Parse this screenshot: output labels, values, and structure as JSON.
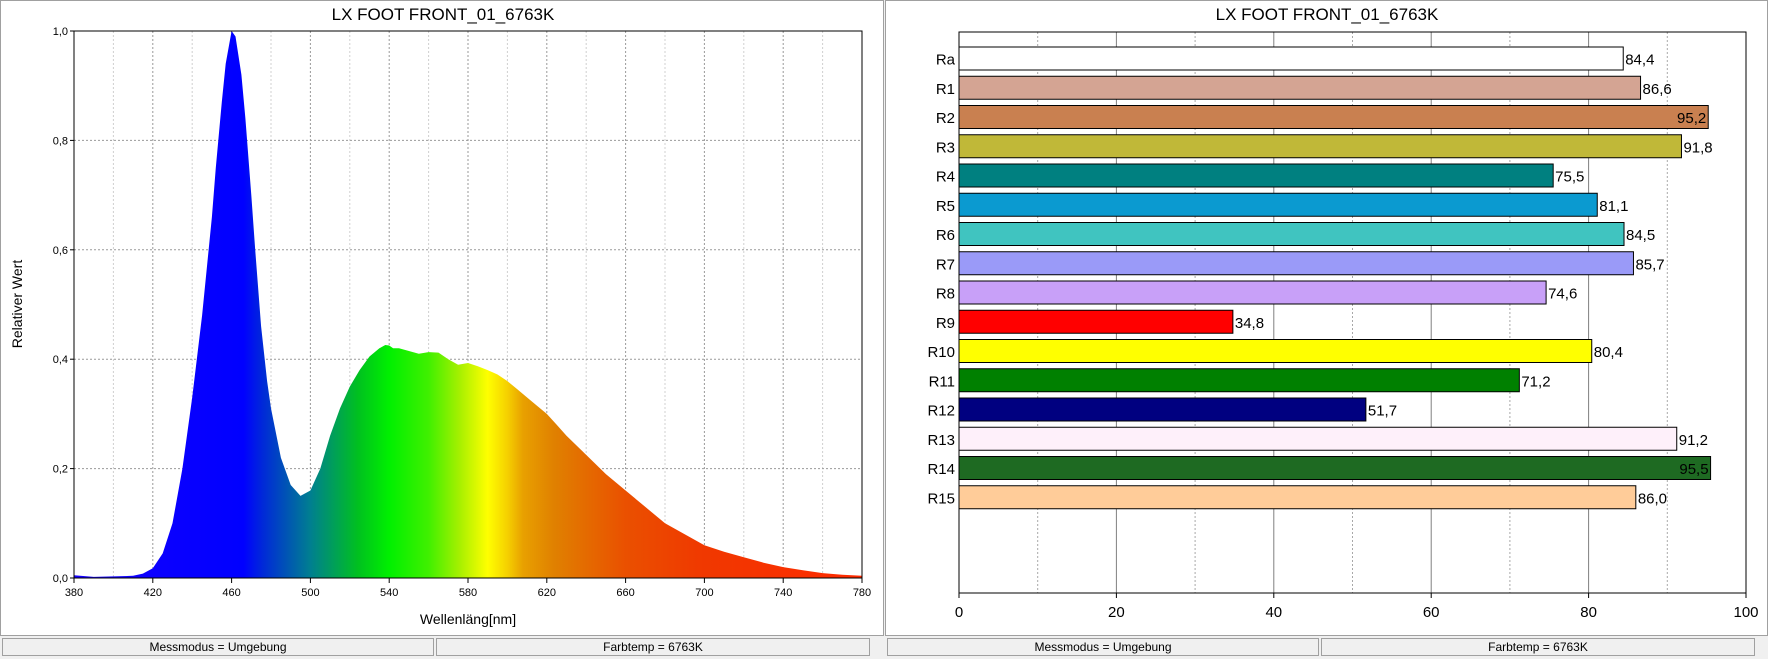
{
  "spectrum": {
    "title": "LX FOOT FRONT_01_6763K",
    "status": {
      "messmodus": "Messmodus = Umgebung",
      "farbtemp": "Farbtemp = 6763K"
    },
    "chart_data": {
      "type": "area",
      "title": "LX FOOT FRONT_01_6763K",
      "xlabel": "Wellenläng[nm]",
      "ylabel": "Relativer Wert",
      "xlim": [
        380,
        780
      ],
      "ylim": [
        0,
        1
      ],
      "x_ticks": [
        "380",
        "420",
        "460",
        "500",
        "540",
        "580",
        "620",
        "660",
        "700",
        "740",
        "780"
      ],
      "y_ticks": [
        "0,0",
        "0,2",
        "0,4",
        "0,6",
        "0,8",
        "1,0"
      ],
      "grid": true,
      "x": [
        380,
        390,
        400,
        410,
        415,
        420,
        425,
        430,
        435,
        440,
        445,
        450,
        452,
        455,
        457,
        460,
        462,
        465,
        467,
        470,
        472,
        475,
        478,
        480,
        485,
        490,
        495,
        500,
        505,
        510,
        515,
        520,
        525,
        530,
        535,
        538,
        540,
        542,
        545,
        550,
        555,
        560,
        565,
        570,
        575,
        580,
        585,
        590,
        595,
        600,
        605,
        610,
        615,
        620,
        625,
        630,
        640,
        650,
        660,
        670,
        680,
        690,
        700,
        710,
        720,
        730,
        740,
        750,
        760,
        770,
        780
      ],
      "y": [
        0.005,
        0.002,
        0.003,
        0.004,
        0.008,
        0.018,
        0.045,
        0.1,
        0.2,
        0.33,
        0.48,
        0.66,
        0.75,
        0.87,
        0.94,
        1.0,
        0.99,
        0.92,
        0.84,
        0.7,
        0.6,
        0.46,
        0.36,
        0.31,
        0.22,
        0.17,
        0.15,
        0.16,
        0.2,
        0.26,
        0.31,
        0.35,
        0.38,
        0.405,
        0.42,
        0.426,
        0.425,
        0.42,
        0.42,
        0.415,
        0.41,
        0.413,
        0.412,
        0.4,
        0.39,
        0.393,
        0.387,
        0.38,
        0.372,
        0.36,
        0.345,
        0.33,
        0.315,
        0.3,
        0.28,
        0.26,
        0.225,
        0.19,
        0.16,
        0.13,
        0.1,
        0.08,
        0.06,
        0.048,
        0.038,
        0.028,
        0.02,
        0.014,
        0.009,
        0.006,
        0.004
      ]
    }
  },
  "cri": {
    "title": "LX FOOT FRONT_01_6763K",
    "status": {
      "messmodus": "Messmodus = Umgebung",
      "farbtemp": "Farbtemp = 6763K"
    },
    "chart_data": {
      "type": "bar",
      "orientation": "horizontal",
      "title": "LX FOOT FRONT_01_6763K",
      "categories": [
        "Ra",
        "R1",
        "R2",
        "R3",
        "R4",
        "R5",
        "R6",
        "R7",
        "R8",
        "R9",
        "R10",
        "R11",
        "R12",
        "R13",
        "R14",
        "R15"
      ],
      "values": [
        84.4,
        86.6,
        95.2,
        91.8,
        75.5,
        81.1,
        84.5,
        85.7,
        74.6,
        34.8,
        80.4,
        71.2,
        51.7,
        91.2,
        95.5,
        86.0
      ],
      "value_labels": [
        "84,4",
        "86,6",
        "95,2",
        "91,8",
        "75,5",
        "81,1",
        "84,5",
        "85,7",
        "74,6",
        "34,8",
        "80,4",
        "71,2",
        "51,7",
        "91,2",
        "95,5",
        "86,0"
      ],
      "label_inside": [
        false,
        false,
        true,
        false,
        false,
        false,
        false,
        false,
        false,
        false,
        false,
        false,
        false,
        false,
        true,
        false
      ],
      "colors": [
        "#ffffff",
        "#d4a493",
        "#c98050",
        "#c0b838",
        "#008080",
        "#0b9ad0",
        "#40c4c0",
        "#9a9af8",
        "#c8a0f8",
        "#ff0000",
        "#ffff00",
        "#008000",
        "#000080",
        "#fef0fa",
        "#1e6a22",
        "#ffcc99"
      ],
      "xlim": [
        0,
        100
      ],
      "x_ticks": [
        "0",
        "20",
        "40",
        "60",
        "80",
        "100"
      ],
      "grid": true
    }
  }
}
